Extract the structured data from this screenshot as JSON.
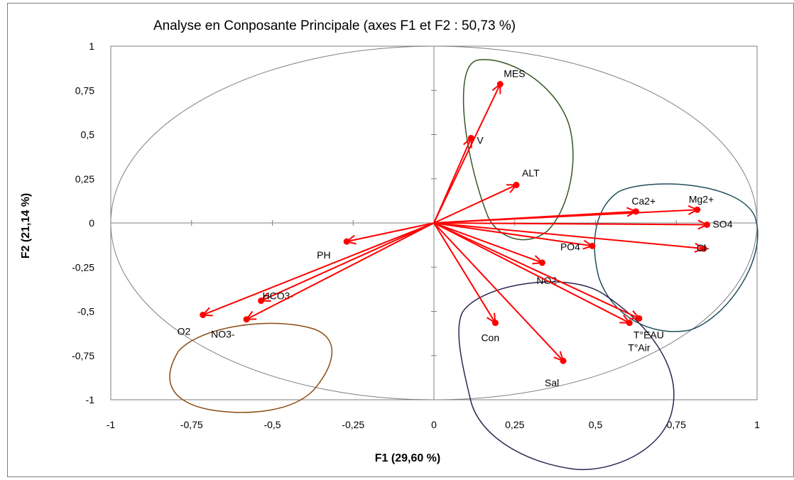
{
  "chart_data": {
    "type": "scatter",
    "title": "Analyse  en Conposante Principale (axes F1 et F2 : 50,73 %)",
    "xlabel": "F1 (29,60 %)",
    "ylabel": "F2 (21,14 %)",
    "xlim": [
      -1,
      1
    ],
    "ylim": [
      -1,
      1
    ],
    "x_ticks": [
      "-1",
      "-0,75",
      "-0,5",
      "-0,25",
      "0",
      "0,25",
      "0,5",
      "0,75",
      "1"
    ],
    "y_ticks": [
      "1",
      "0,75",
      "0,5",
      "0,25",
      "0",
      "-0,25",
      "-0,5",
      "-0,75",
      "-1"
    ],
    "x_tick_values": [
      -1,
      -0.75,
      -0.5,
      -0.25,
      0,
      0.25,
      0.5,
      0.75,
      1
    ],
    "y_tick_values": [
      1,
      0.75,
      0.5,
      0.25,
      0,
      -0.25,
      -0.5,
      -0.75,
      -1
    ],
    "grid": false,
    "correlation_circle": true,
    "vector_color": "#ff0000",
    "points": [
      {
        "label": "MES",
        "x": 0.205,
        "y": 0.785
      },
      {
        "label": "V",
        "x": 0.115,
        "y": 0.48
      },
      {
        "label": "ALT",
        "x": 0.255,
        "y": 0.215
      },
      {
        "label": "Ca2+",
        "x": 0.625,
        "y": 0.065
      },
      {
        "label": "Mg2+",
        "x": 0.815,
        "y": 0.075
      },
      {
        "label": "SO4",
        "x": 0.845,
        "y": -0.01
      },
      {
        "label": "Cl-",
        "x": 0.835,
        "y": -0.145
      },
      {
        "label": "PO4",
        "x": 0.49,
        "y": -0.13
      },
      {
        "label": "NO2-",
        "x": 0.335,
        "y": -0.225
      },
      {
        "label": "T°EAU",
        "x": 0.635,
        "y": -0.54
      },
      {
        "label": "T°Air",
        "x": 0.605,
        "y": -0.565
      },
      {
        "label": "Con",
        "x": 0.19,
        "y": -0.565
      },
      {
        "label": "Sal",
        "x": 0.4,
        "y": -0.78
      },
      {
        "label": "PH",
        "x": -0.27,
        "y": -0.105
      },
      {
        "label": "HCO3-",
        "x": -0.535,
        "y": -0.44
      },
      {
        "label": "NO3-",
        "x": -0.58,
        "y": -0.545
      },
      {
        "label": "O2",
        "x": -0.715,
        "y": -0.52
      }
    ],
    "groups": [
      {
        "name": "green",
        "color": "#375623"
      },
      {
        "name": "teal",
        "color": "#1f4e5a"
      },
      {
        "name": "navy",
        "color": "#2a2750"
      },
      {
        "name": "brown",
        "color": "#8a4b0f"
      }
    ]
  }
}
